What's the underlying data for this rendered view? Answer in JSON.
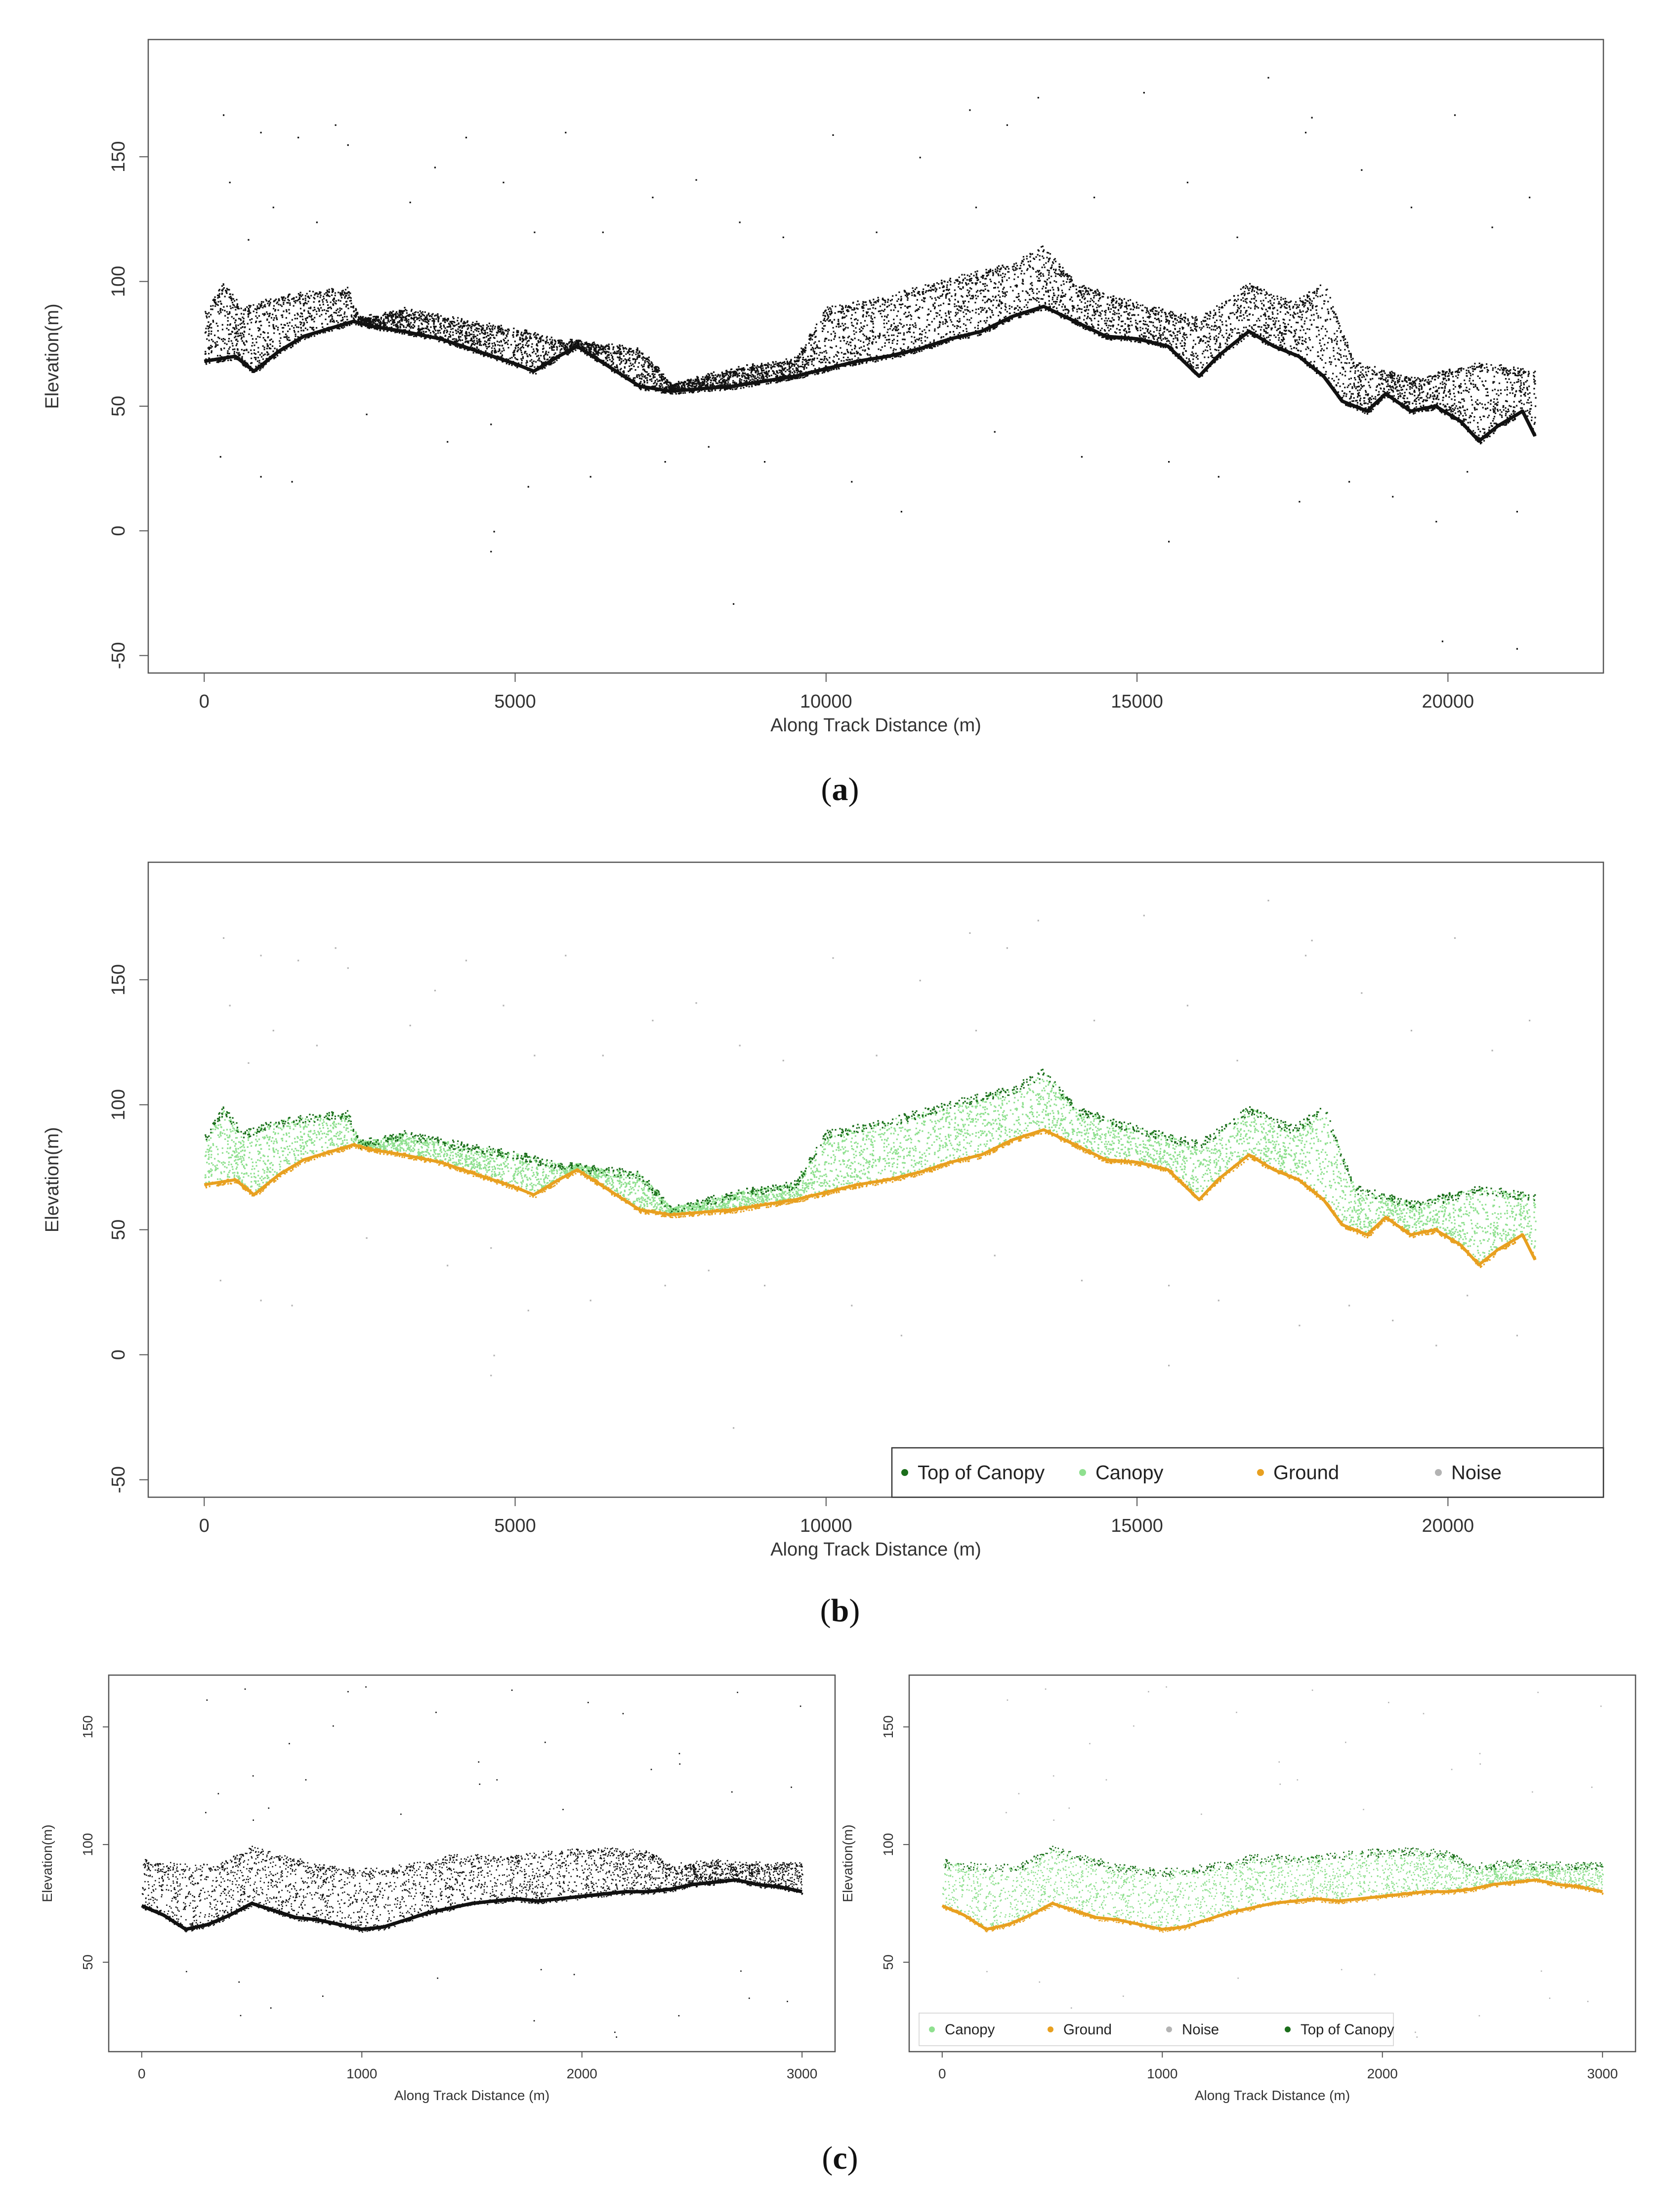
{
  "captions": {
    "a": "a",
    "b": "b",
    "c": "c"
  },
  "colors": {
    "points": "#111111",
    "top_of_canopy": "#1b6e1b",
    "canopy": "#8fe08f",
    "ground": "#e8a020",
    "noise": "#b3b3b3",
    "frame": "#555555"
  },
  "chart_data": [
    {
      "id": "a",
      "type": "scatter",
      "title": "",
      "xlabel": "Along Track Distance (m)",
      "ylabel": "Elevation(m)",
      "xlim": [
        -900,
        22500
      ],
      "ylim": [
        -57,
        197
      ],
      "xticks": [
        0,
        5000,
        10000,
        15000,
        20000
      ],
      "yticks": [
        -50,
        0,
        50,
        100,
        150
      ],
      "legend": null,
      "ground_profile": {
        "x": [
          0,
          500,
          800,
          1200,
          1600,
          2000,
          2400,
          2700,
          3200,
          3800,
          4400,
          5000,
          5300,
          5700,
          6000,
          6500,
          7000,
          7500,
          8000,
          8500,
          9000,
          9500,
          10000,
          10500,
          11000,
          11500,
          12000,
          12500,
          13000,
          13500,
          14000,
          14500,
          15000,
          15500,
          16000,
          16300,
          16800,
          17200,
          17600,
          18000,
          18300,
          18700,
          19000,
          19400,
          19800,
          20200,
          20500,
          20800,
          21200,
          21400
        ],
        "y": [
          68,
          70,
          64,
          72,
          78,
          81,
          84,
          82,
          80,
          77,
          72,
          67,
          64,
          70,
          74,
          66,
          58,
          56,
          57,
          58,
          60,
          62,
          65,
          68,
          70,
          73,
          77,
          80,
          86,
          90,
          84,
          78,
          77,
          74,
          62,
          70,
          80,
          74,
          70,
          62,
          52,
          48,
          55,
          48,
          50,
          44,
          36,
          42,
          48,
          38
        ]
      },
      "canopy_top_profile": {
        "x": [
          0,
          300,
          600,
          1200,
          1800,
          2300,
          2500,
          3200,
          4000,
          5000,
          5600,
          6300,
          7000,
          7500,
          8500,
          9500,
          10000,
          11000,
          12000,
          13000,
          13500,
          14000,
          15000,
          16000,
          16800,
          17500,
          18000,
          18500,
          19500,
          20500,
          21400
        ],
        "y": [
          88,
          100,
          90,
          95,
          97,
          98,
          86,
          90,
          86,
          82,
          78,
          76,
          74,
          60,
          66,
          70,
          90,
          95,
          102,
          108,
          115,
          100,
          92,
          86,
          100,
          92,
          100,
          68,
          62,
          68,
          65
        ]
      },
      "noise_points": {
        "x": [
          300,
          400,
          700,
          900,
          1100,
          1500,
          1800,
          2100,
          2300,
          3300,
          3700,
          4200,
          4800,
          5300,
          5800,
          6400,
          7200,
          7900,
          8600,
          9300,
          10100,
          10800,
          11500,
          12300,
          12900,
          13400,
          14300,
          15100,
          15800,
          16600,
          17100,
          17800,
          18600,
          19400,
          20100,
          20700,
          21300,
          250,
          900,
          1400,
          2600,
          3900,
          4600,
          5200,
          6200,
          7400,
          8100,
          9000,
          11200,
          12700,
          14100,
          15500,
          16300,
          17600,
          18400,
          19100,
          19800,
          20300,
          21100,
          4650,
          8500,
          19900,
          21100,
          4600,
          15500,
          10400,
          12400,
          17700
        ],
        "y": [
          167,
          140,
          117,
          160,
          130,
          158,
          124,
          163,
          155,
          132,
          146,
          158,
          140,
          120,
          160,
          120,
          134,
          141,
          124,
          118,
          159,
          120,
          150,
          169,
          163,
          174,
          134,
          176,
          140,
          118,
          182,
          166,
          145,
          130,
          167,
          122,
          134,
          30,
          22,
          20,
          47,
          36,
          43,
          18,
          22,
          28,
          34,
          28,
          8,
          40,
          30,
          28,
          22,
          12,
          20,
          14,
          4,
          24,
          8,
          0,
          -29,
          -44,
          -47,
          -8,
          -4,
          20,
          130,
          160
        ]
      }
    },
    {
      "id": "b",
      "type": "scatter",
      "title": "",
      "xlabel": "Along Track Distance (m)",
      "ylabel": "Elevation(m)",
      "xlim": [
        -900,
        22500
      ],
      "ylim": [
        -57,
        197
      ],
      "xticks": [
        0,
        5000,
        10000,
        15000,
        20000
      ],
      "yticks": [
        -50,
        0,
        50,
        100,
        150
      ],
      "legend": [
        "Top of Canopy",
        "Canopy",
        "Ground",
        "Noise"
      ],
      "legend_position": "bottom-right"
    },
    {
      "id": "c-left",
      "type": "scatter",
      "title": "",
      "xlabel": "Along Track Distance (m)",
      "ylabel": "Elevation(m)",
      "xlim": [
        -150,
        3150
      ],
      "ylim": [
        12,
        172
      ],
      "xticks": [
        0,
        1000,
        2000,
        3000
      ],
      "yticks": [
        50,
        100,
        150
      ],
      "legend": null,
      "ground_profile": {
        "x": [
          0,
          100,
          200,
          300,
          400,
          500,
          600,
          700,
          800,
          900,
          1000,
          1100,
          1200,
          1300,
          1400,
          1500,
          1600,
          1700,
          1800,
          1900,
          2000,
          2100,
          2200,
          2300,
          2400,
          2500,
          2600,
          2700,
          2800,
          2900,
          3000
        ],
        "y": [
          74,
          70,
          64,
          66,
          70,
          75,
          72,
          69,
          68,
          66,
          64,
          65,
          68,
          71,
          73,
          75,
          76,
          77,
          76,
          77,
          78,
          79,
          80,
          80,
          81,
          83,
          84,
          85,
          83,
          82,
          80
        ]
      },
      "canopy_top_profile": {
        "x": [
          0,
          200,
          350,
          500,
          650,
          800,
          1000,
          1200,
          1350,
          1400,
          1600,
          1800,
          1900,
          2100,
          2300,
          2400,
          2600,
          2700
        ],
        "y": [
          94,
          92,
          92,
          100,
          96,
          92,
          90,
          92,
          94,
          96,
          96,
          97,
          98,
          99,
          98,
          92,
          94,
          93
        ]
      }
    },
    {
      "id": "c-right",
      "type": "scatter",
      "title": "",
      "xlabel": "Along Track Distance (m)",
      "ylabel": "Elevation(m)",
      "xlim": [
        -150,
        3150
      ],
      "ylim": [
        12,
        172
      ],
      "xticks": [
        0,
        1000,
        2000,
        3000
      ],
      "yticks": [
        50,
        100,
        150
      ],
      "legend": [
        "Canopy",
        "Ground",
        "Noise",
        "Top of Canopy"
      ],
      "legend_position": "bottom-left"
    }
  ]
}
